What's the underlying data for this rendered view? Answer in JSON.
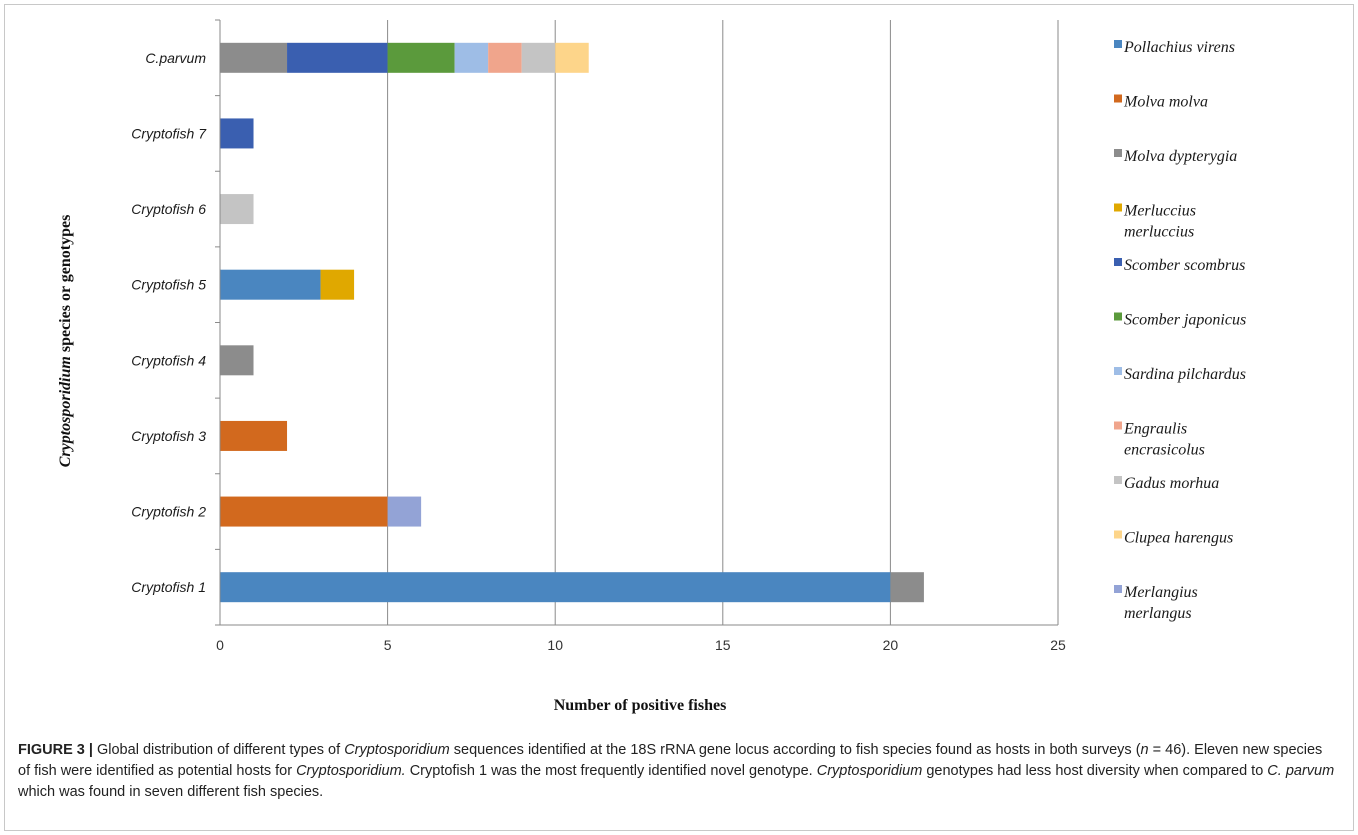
{
  "chart_data": {
    "type": "bar",
    "orientation": "horizontal",
    "stacked": true,
    "categories": [
      "C.parvum",
      "Cryptofish 7",
      "Cryptofish 6",
      "Cryptofish 5",
      "Cryptofish 4",
      "Cryptofish 3",
      "Cryptofish 2",
      "Cryptofish 1"
    ],
    "series": [
      {
        "name": "Pollachius virens",
        "color": "#4a86c0",
        "values": [
          0,
          0,
          0,
          3,
          0,
          0,
          0,
          20
        ]
      },
      {
        "name": "Molva molva",
        "color": "#d2691e",
        "values": [
          0,
          0,
          0,
          0,
          0,
          2,
          5,
          0
        ]
      },
      {
        "name": "Molva dypterygia",
        "color": "#8c8c8c",
        "values": [
          2,
          0,
          0,
          0,
          1,
          0,
          0,
          1
        ]
      },
      {
        "name": "Merluccius merluccius",
        "color": "#e0a800",
        "values": [
          0,
          0,
          0,
          1,
          0,
          0,
          0,
          0
        ]
      },
      {
        "name": "Scomber scombrus",
        "color": "#3a5fb0",
        "values": [
          3,
          1,
          0,
          0,
          0,
          0,
          0,
          0
        ]
      },
      {
        "name": "Scomber japonicus",
        "color": "#5b9a3c",
        "values": [
          2,
          0,
          0,
          0,
          0,
          0,
          0,
          0
        ]
      },
      {
        "name": "Sardina pilchardus",
        "color": "#9ebde6",
        "values": [
          1,
          0,
          0,
          0,
          0,
          0,
          0,
          0
        ]
      },
      {
        "name": "Engraulis encrasicolus",
        "color": "#f0a58c",
        "values": [
          1,
          0,
          0,
          0,
          0,
          0,
          0,
          0
        ]
      },
      {
        "name": "Gadus morhua",
        "color": "#c4c4c4",
        "values": [
          1,
          0,
          1,
          0,
          0,
          0,
          0,
          0
        ]
      },
      {
        "name": "Clupea harengus",
        "color": "#fdd58a",
        "values": [
          1,
          0,
          0,
          0,
          0,
          0,
          0,
          0
        ]
      },
      {
        "name": "Merlangius merlangus",
        "color": "#93a3d6",
        "values": [
          0,
          0,
          0,
          0,
          0,
          0,
          1,
          0
        ]
      }
    ],
    "legend_entries": [
      [
        "Pollachius virens"
      ],
      [
        "Molva molva"
      ],
      [
        "Molva dypterygia"
      ],
      [
        "Merluccius",
        "merluccius"
      ],
      [
        "Scomber scombrus"
      ],
      [
        "Scomber japonicus"
      ],
      [
        "Sardina pilchardus"
      ],
      [
        "Engraulis",
        "encrasicolus"
      ],
      [
        "Gadus morhua"
      ],
      [
        "Clupea harengus"
      ],
      [
        "Merlangius",
        "merlangus"
      ]
    ],
    "xlabel": "Number of positive fishes",
    "ylabel": "Cryptosporidium species or genotypes",
    "xlim": [
      0,
      25
    ],
    "xticks": [
      0,
      5,
      10,
      15,
      20,
      25
    ],
    "grid": "vertical",
    "legend_position": "right"
  },
  "caption": {
    "label": "FIGURE 3 |",
    "segments": [
      {
        "text": " Global distribution of different types of ",
        "italic": false
      },
      {
        "text": "Cryptosporidium",
        "italic": true
      },
      {
        "text": " sequences identified at the 18S rRNA gene locus according to fish species found as hosts in both surveys (",
        "italic": false
      },
      {
        "text": "n",
        "italic": true
      },
      {
        "text": " = 46). Eleven new species of fish were identified as potential hosts for ",
        "italic": false
      },
      {
        "text": "Cryptosporidium.",
        "italic": true
      },
      {
        "text": " Cryptofish 1 was the most frequently identified novel genotype. ",
        "italic": false
      },
      {
        "text": "Cryptosporidium",
        "italic": true
      },
      {
        "text": " genotypes had less host diversity when compared to ",
        "italic": false
      },
      {
        "text": "C. parvum",
        "italic": true
      },
      {
        "text": " which was found in seven different fish species.",
        "italic": false
      }
    ]
  }
}
